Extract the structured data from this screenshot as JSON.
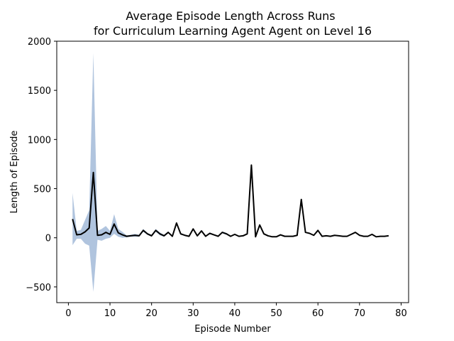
{
  "chart_data": {
    "type": "line",
    "title_line1": "Average Episode Length Across Runs",
    "title_line2": "for Curriculum Learning Agent Agent on Level 16",
    "xlabel": "Episode Number",
    "ylabel": "Length of Episode",
    "xlim": [
      -2.8,
      81.8
    ],
    "ylim": [
      -660,
      2000
    ],
    "x_ticks": [
      0,
      10,
      20,
      30,
      40,
      50,
      60,
      70,
      80
    ],
    "y_ticks": [
      -500,
      0,
      500,
      1000,
      1500,
      2000
    ],
    "y_tick_labels": [
      "−500",
      "0",
      "500",
      "1000",
      "1500",
      "2000"
    ],
    "grid": false,
    "colors": {
      "mean_line": "#000000",
      "band_fill": "#b0c4de"
    },
    "series": [
      {
        "x": [
          1,
          2,
          3,
          4,
          5,
          6,
          7,
          8,
          9,
          10,
          11,
          12,
          13,
          14,
          15,
          16,
          17,
          18,
          19,
          20,
          21,
          22,
          23,
          24,
          25,
          26,
          27,
          28,
          29,
          30,
          31,
          32,
          33,
          34,
          35,
          36,
          37,
          38,
          39,
          40,
          41,
          42,
          43,
          44,
          45,
          46,
          47,
          48,
          49,
          50,
          51,
          52,
          53,
          54,
          55,
          56,
          57,
          58,
          59,
          60,
          61,
          62,
          63,
          64,
          65,
          66,
          67,
          68,
          69,
          70,
          71,
          72,
          73,
          74,
          75,
          76,
          77
        ],
        "mean": [
          190,
          30,
          35,
          60,
          100,
          665,
          25,
          30,
          55,
          35,
          140,
          50,
          30,
          15,
          20,
          25,
          20,
          75,
          40,
          20,
          75,
          40,
          20,
          55,
          15,
          150,
          40,
          25,
          15,
          90,
          20,
          70,
          15,
          45,
          30,
          15,
          55,
          40,
          15,
          35,
          15,
          20,
          40,
          740,
          10,
          130,
          40,
          20,
          10,
          10,
          30,
          15,
          15,
          15,
          25,
          390,
          55,
          45,
          25,
          75,
          15,
          20,
          15,
          25,
          20,
          15,
          15,
          35,
          55,
          25,
          15,
          15,
          35,
          10,
          15,
          15,
          20
        ],
        "upper": [
          455,
          70,
          80,
          180,
          280,
          1880,
          70,
          90,
          120,
          70,
          240,
          90,
          60,
          25,
          30,
          40,
          30,
          90,
          50,
          30,
          90,
          55,
          30,
          65,
          20,
          160,
          50,
          30,
          20,
          100,
          25,
          80,
          20,
          55,
          35,
          20,
          65,
          50,
          20,
          40,
          20,
          25,
          45,
          750,
          15,
          140,
          45,
          25,
          12,
          12,
          35,
          18,
          18,
          18,
          28,
          400,
          60,
          50,
          28,
          80,
          18,
          22,
          18,
          28,
          22,
          18,
          18,
          38,
          58,
          28,
          18,
          18,
          38,
          12,
          18,
          18,
          22
        ],
        "lower": [
          -75,
          -10,
          -10,
          -60,
          -80,
          -550,
          -20,
          -30,
          -10,
          0,
          40,
          10,
          0,
          5,
          10,
          10,
          10,
          60,
          30,
          10,
          60,
          25,
          10,
          45,
          10,
          140,
          30,
          20,
          10,
          80,
          15,
          60,
          10,
          35,
          25,
          10,
          45,
          30,
          10,
          30,
          10,
          15,
          35,
          730,
          5,
          120,
          35,
          15,
          8,
          8,
          25,
          12,
          12,
          12,
          22,
          380,
          50,
          40,
          22,
          70,
          12,
          18,
          12,
          22,
          18,
          12,
          12,
          32,
          52,
          22,
          12,
          12,
          32,
          8,
          12,
          12,
          18
        ]
      }
    ]
  }
}
